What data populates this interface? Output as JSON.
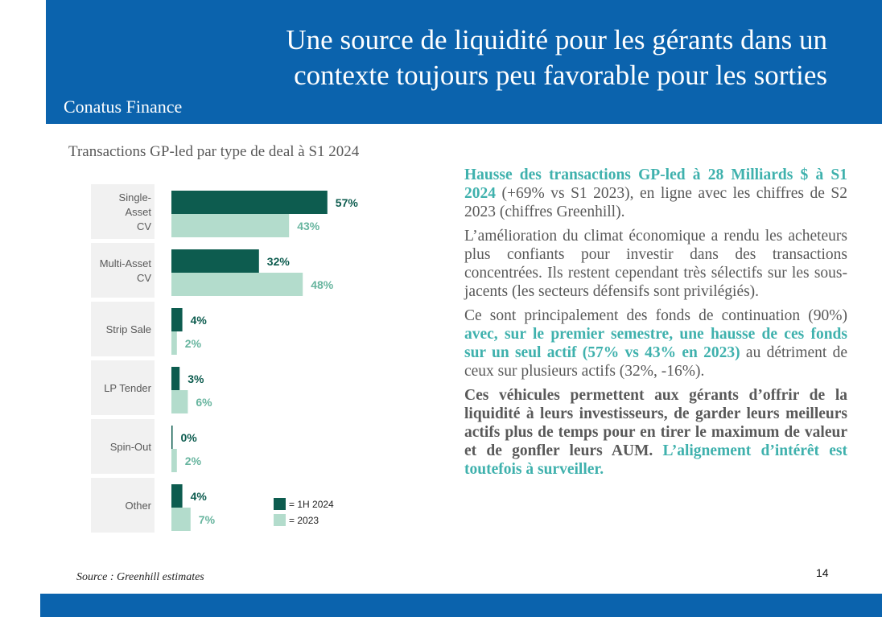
{
  "header": {
    "title_line1": "Une source de liquidité pour les gérants dans un",
    "title_line2": "contexte toujours peu favorable pour les sorties",
    "brand": "Conatus Finance",
    "bg_color": "#0b63ad"
  },
  "chart_title": "Transactions GP-led par type de deal à S1 2024",
  "chart_data": {
    "type": "bar",
    "orientation": "horizontal",
    "categories": [
      "Single-Asset CV",
      "Multi-Asset CV",
      "Strip Sale",
      "LP Tender",
      "Spin-Out",
      "Other"
    ],
    "category_lines": [
      [
        "Single-",
        "Asset",
        "CV"
      ],
      [
        "Multi-Asset",
        "CV"
      ],
      [
        "Strip Sale"
      ],
      [
        "LP Tender"
      ],
      [
        "Spin-Out"
      ],
      [
        "Other"
      ]
    ],
    "series": [
      {
        "name": "= 1H 2024",
        "values": [
          57,
          32,
          4,
          3,
          0,
          4
        ],
        "labels": [
          "57%",
          "32%",
          "4%",
          "3%",
          "0%",
          "4%"
        ],
        "color": "#0d5c4f"
      },
      {
        "name": "= 2023",
        "values": [
          43,
          48,
          2,
          6,
          2,
          7
        ],
        "labels": [
          "43%",
          "48%",
          "2%",
          "6%",
          "2%",
          "7%"
        ],
        "color": "#b3dccc"
      }
    ],
    "unit": "%",
    "legend": "bottom-right"
  },
  "text": {
    "p1_hl": "Hausse des transactions GP-led à 28 Milliards $ à S1 2024",
    "p1_rest": " (+69% vs S1 2023), en ligne avec les chiffres de S2 2023 (chiffres Greenhill).",
    "p2": "L’amélioration du climat économique a rendu les acheteurs plus confiants pour investir dans des transactions concentrées. Ils restent cependant très sélectifs sur les sous-jacents (les secteurs défensifs sont privilégiés).",
    "p3_a": "Ce sont principalement des fonds de continuation (90%) ",
    "p3_hl": "avec, sur le premier semestre, une hausse de ces fonds sur un seul actif (57% vs 43% en 2023)",
    "p3_b": " au détriment de ceux sur plusieurs actifs (32%, -16%).",
    "p4_bold": "Ces véhicules permettent aux gérants d’offrir de la liquidité à leurs investisseurs, de garder leurs meilleurs actifs plus de temps pour en tirer le maximum de valeur et de gonfler leurs AUM.",
    "p4_hl": " L’alignement d’intérêt est toutefois à surveiller."
  },
  "colors": {
    "highlight": "#3fb1ad",
    "body_text": "#595959"
  },
  "source": "Source : Greenhill estimates",
  "page_number": "14"
}
